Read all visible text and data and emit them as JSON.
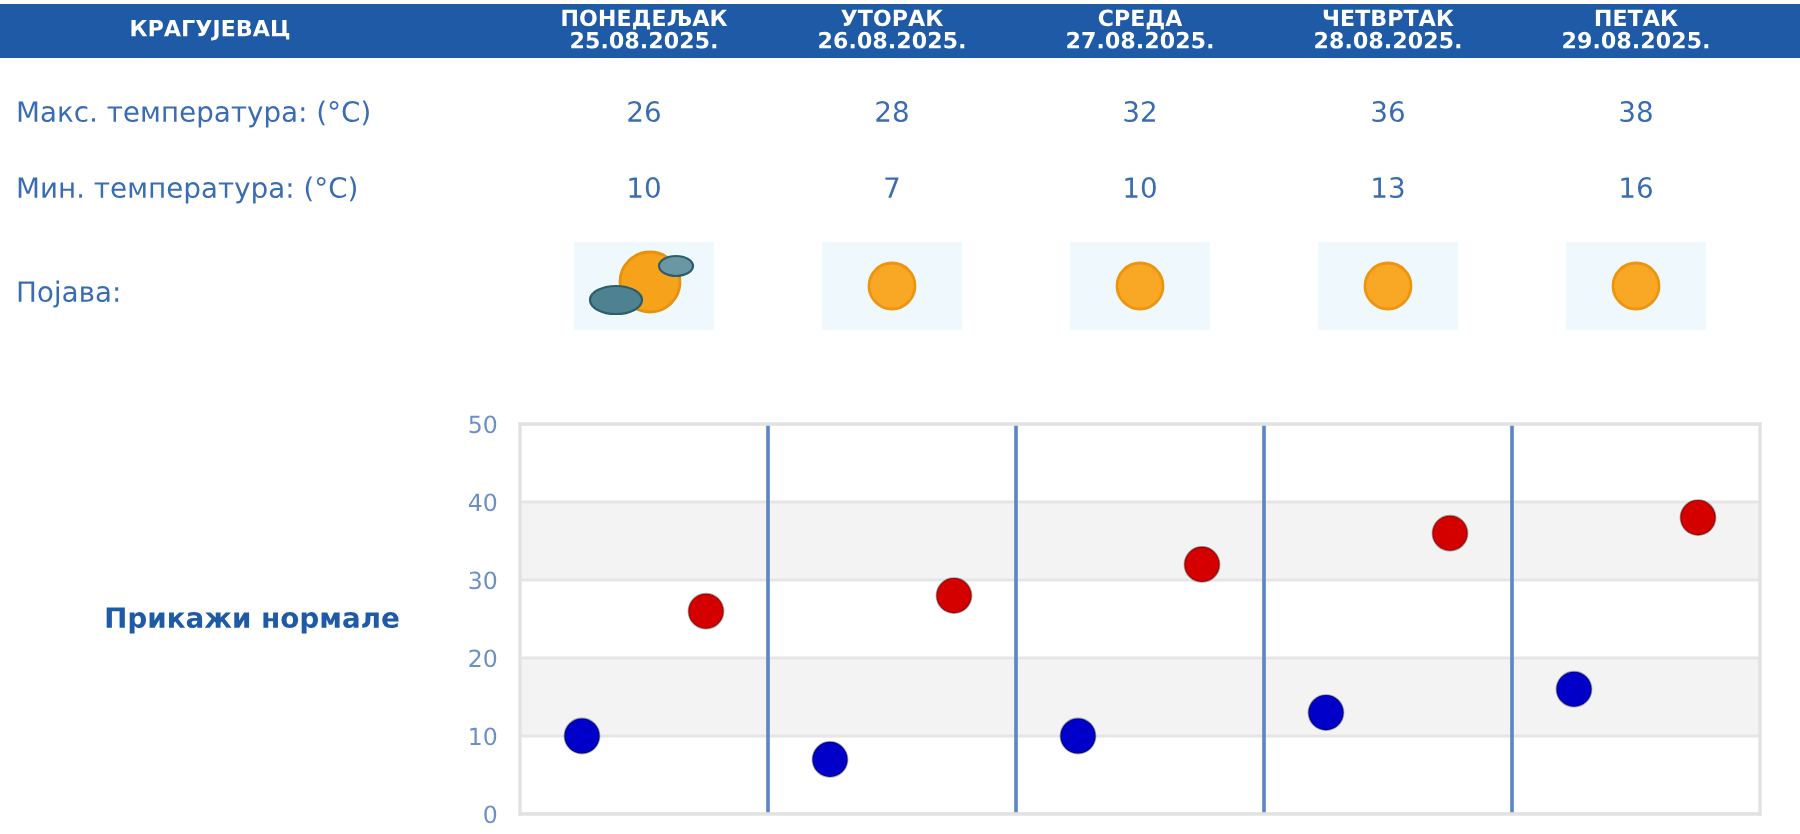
{
  "chart_data": {
    "type": "scatter",
    "title": "КРАГУЈЕВАЦ",
    "categories": [
      null,
      null,
      null,
      null,
      null
    ],
    "series": [
      {
        "color": "#d40000",
        "values": [
          26,
          28,
          32,
          36,
          38
        ]
      },
      {
        "color": "#0000c8",
        "values": [
          10,
          7,
          10,
          13,
          16
        ]
      }
    ],
    "ylim": [
      0,
      50
    ],
    "yticks": [
      0,
      10,
      20,
      30,
      40,
      50
    ],
    "tick_labels": "y",
    "grid": true,
    "marker": "circle",
    "data_labels": true,
    "annotations": [
      "ПОНЕДЕЉАК\n25.08.2025.",
      "УТОРАК\n26.08.2025.",
      "СРЕДА\n27.08.2025.",
      "ЧЕТВРТАК\n28.08.2025.",
      "ПЕТАК\n29.08.2025.",
      "Макс. температура: (°C)",
      "Мин. температура: (°C)",
      "Појава:",
      "Прикажи нормале"
    ]
  }
}
